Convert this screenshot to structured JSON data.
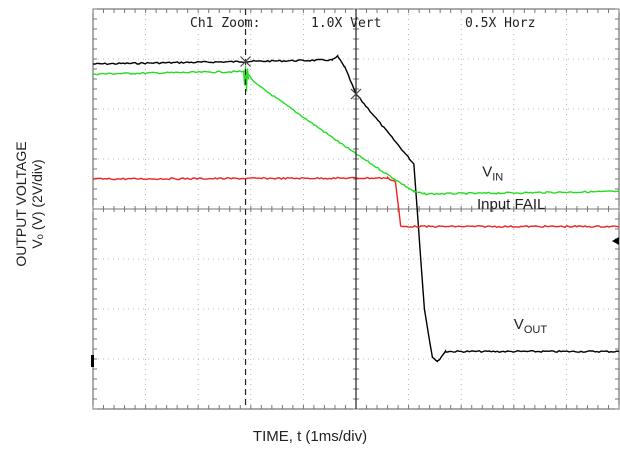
{
  "chart_data": {
    "type": "line",
    "header": {
      "zoom": "Ch1 Zoom:",
      "vert": "1.0X Vert",
      "horz": "0.5X Horz"
    },
    "xlabel": "TIME, t (1ms/div)",
    "ylabel_line1": "OUTPUT VOLTAGE",
    "ylabel_line2": "Vₒ (V) (2V/div)",
    "divisions": {
      "x": 10,
      "y": 8
    },
    "xlim": [
      0,
      10
    ],
    "ylim": [
      0,
      8
    ],
    "markers": [
      {
        "x": 2.9,
        "style": "dashed"
      },
      {
        "x": 5.0,
        "style": "solid"
      }
    ],
    "series": [
      {
        "color": "#000000",
        "x": [
          0,
          2.9,
          4.55,
          4.65,
          4.78,
          5.0,
          6.1,
          6.3,
          6.45,
          6.55,
          6.7,
          10
        ],
        "y": [
          6.9,
          6.95,
          6.98,
          7.05,
          6.85,
          6.3,
          4.9,
          2.0,
          1.05,
          0.95,
          1.15,
          1.15
        ]
      },
      {
        "color": "#22dd22",
        "x": [
          0,
          2.9,
          3.1,
          5.0,
          6.1,
          6.3,
          10
        ],
        "y": [
          6.7,
          6.75,
          6.5,
          5.1,
          4.35,
          4.3,
          4.35
        ]
      },
      {
        "color": "#ee2222",
        "x": [
          0,
          5.6,
          5.75,
          5.85,
          10
        ],
        "y": [
          4.6,
          4.62,
          4.55,
          3.65,
          3.65
        ]
      }
    ],
    "annotations": [
      {
        "text": "V",
        "sub": "IN",
        "x": 7.4,
        "y": 4.65
      },
      {
        "text": "Input FAIL",
        "sub": "",
        "x": 7.3,
        "y": 4.0
      },
      {
        "text": "V",
        "sub": "OUT",
        "x": 8.0,
        "y": 1.6
      }
    ]
  }
}
